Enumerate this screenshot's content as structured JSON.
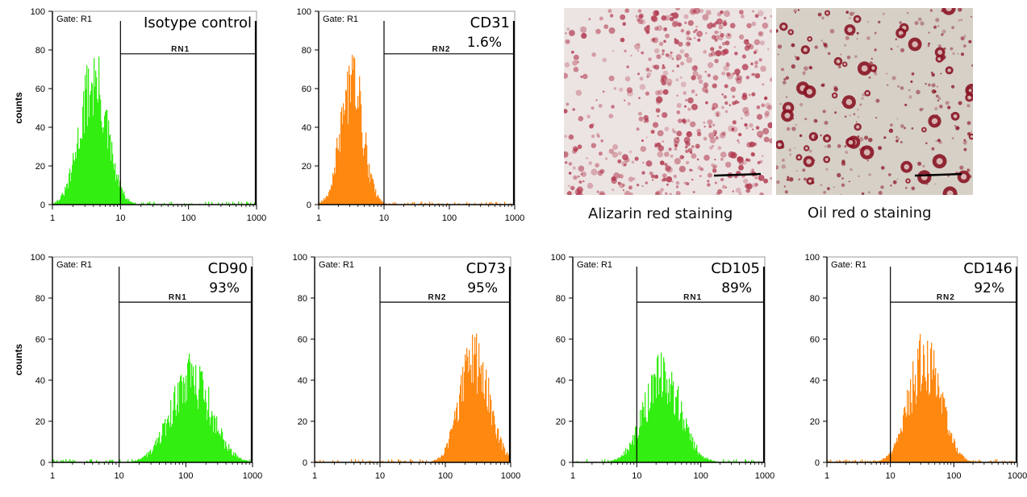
{
  "figure": {
    "photos": [
      {
        "id": "alizarin",
        "caption": "Alizarin red staining",
        "stain_color": "#b0354c",
        "background_color": "#ece4e2"
      },
      {
        "id": "oilred",
        "caption": "Oil red o staining",
        "stain_color": "#8a1424",
        "background_color": "#d6d0c7"
      }
    ]
  },
  "chart_data": [
    {
      "type": "histogram",
      "id": "isotype",
      "gate": "Gate: R1",
      "title": "Isotype control",
      "percent": "",
      "region": "RN1",
      "region_start": 10,
      "region_end": 1000,
      "color": "#33ee11",
      "ylabel": "counts",
      "xscale": "log",
      "xlim": [
        1,
        1000
      ],
      "ylim": [
        0,
        100
      ],
      "xticks": [
        "1",
        "10",
        "100",
        "1000"
      ],
      "yticks": [
        "0",
        "20",
        "40",
        "60",
        "80",
        "100"
      ],
      "peak_x": 4,
      "peak_count": 76,
      "spread": 0.2
    },
    {
      "type": "histogram",
      "id": "cd31",
      "gate": "Gate: R1",
      "title": "CD31",
      "percent": "1.6%",
      "region": "RN2",
      "region_start": 10,
      "region_end": 1000,
      "color": "#ff8811",
      "ylabel": "",
      "xscale": "log",
      "xlim": [
        1,
        1000
      ],
      "ylim": [
        0,
        100
      ],
      "xticks": [
        "1",
        "10",
        "100",
        "1000"
      ],
      "yticks": [
        "0",
        "20",
        "40",
        "60",
        "80",
        "100"
      ],
      "peak_x": 3.2,
      "peak_count": 77,
      "spread": 0.17
    },
    {
      "type": "histogram",
      "id": "cd90",
      "gate": "Gate: R1",
      "title": "CD90",
      "percent": "93%",
      "region": "RN1",
      "region_start": 10,
      "region_end": 1000,
      "color": "#33ee11",
      "ylabel": "counts",
      "xscale": "log",
      "xlim": [
        1,
        1000
      ],
      "ylim": [
        0,
        100
      ],
      "xticks": [
        "1",
        "10",
        "100",
        "1000"
      ],
      "yticks": [
        "0",
        "20",
        "40",
        "60",
        "80",
        "100"
      ],
      "peak_x": 120,
      "peak_count": 49,
      "spread": 0.3
    },
    {
      "type": "histogram",
      "id": "cd73",
      "gate": "Gate: R1",
      "title": "CD73",
      "percent": "95%",
      "region": "RN2",
      "region_start": 10,
      "region_end": 1000,
      "color": "#ff8811",
      "ylabel": "",
      "xscale": "log",
      "xlim": [
        1,
        1000
      ],
      "ylim": [
        0,
        100
      ],
      "xticks": [
        "1",
        "10",
        "100",
        "1000"
      ],
      "yticks": [
        "0",
        "20",
        "40",
        "60",
        "80",
        "100"
      ],
      "peak_x": 280,
      "peak_count": 61,
      "spread": 0.22
    },
    {
      "type": "histogram",
      "id": "cd105",
      "gate": "Gate: R1",
      "title": "CD105",
      "percent": "89%",
      "region": "RN1",
      "region_start": 10,
      "region_end": 1000,
      "color": "#33ee11",
      "ylabel": "",
      "xscale": "log",
      "xlim": [
        1,
        1000
      ],
      "ylim": [
        0,
        100
      ],
      "xticks": [
        "1",
        "10",
        "100",
        "1000"
      ],
      "yticks": [
        "0",
        "20",
        "40",
        "60",
        "80",
        "100"
      ],
      "peak_x": 25,
      "peak_count": 50,
      "spread": 0.28
    },
    {
      "type": "histogram",
      "id": "cd146",
      "gate": "Gate: R1",
      "title": "CD146",
      "percent": "92%",
      "region": "RN2",
      "region_start": 10,
      "region_end": 1000,
      "color": "#ff8811",
      "ylabel": "",
      "xscale": "log",
      "xlim": [
        1,
        1000
      ],
      "ylim": [
        0,
        100
      ],
      "xticks": [
        "1",
        "10",
        "100",
        "1000"
      ],
      "yticks": [
        "0",
        "20",
        "40",
        "60",
        "80",
        "100"
      ],
      "peak_x": 35,
      "peak_count": 60,
      "spread": 0.25
    }
  ]
}
